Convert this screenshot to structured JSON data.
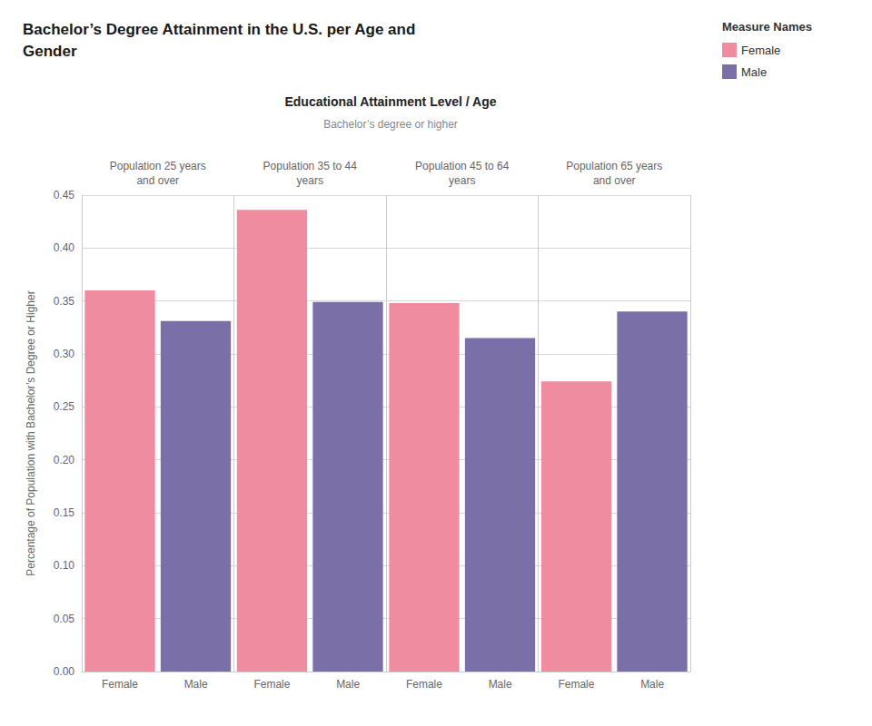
{
  "chart_data": {
    "type": "bar",
    "title": "Bachelor’s Degree Attainment in the U.S. per Age and\nGender",
    "chart_title": "Educational Attainment Level / Age",
    "chart_subtitle": "Bachelor’s degree or higher",
    "ylabel": "Percentage of Population with Bachelor’s Degree or Higher",
    "legend_title": "Measure Names",
    "legend": "upper right",
    "categories": [
      "Population 25 years\nand over",
      "Population 35 to 44\nyears",
      "Population 45 to 64\nyears",
      "Population 65 years\nand over"
    ],
    "series": [
      {
        "name": "Female",
        "color": "#F08CA0",
        "values": [
          0.36,
          0.436,
          0.348,
          0.274
        ]
      },
      {
        "name": "Male",
        "color": "#7B6FA8",
        "values": [
          0.331,
          0.349,
          0.315,
          0.34
        ]
      }
    ],
    "ylim": [
      0,
      0.45
    ],
    "yticks": [
      {
        "value": 0.0,
        "label": "0.00"
      },
      {
        "value": 0.05,
        "label": "0.05"
      },
      {
        "value": 0.1,
        "label": "0.10"
      },
      {
        "value": 0.15,
        "label": "0.15"
      },
      {
        "value": 0.2,
        "label": "0.20"
      },
      {
        "value": 0.25,
        "label": "0.25"
      },
      {
        "value": 0.3,
        "label": "0.30"
      },
      {
        "value": 0.35,
        "label": "0.35"
      },
      {
        "value": 0.4,
        "label": "0.40"
      },
      {
        "value": 0.45,
        "label": "0.45"
      }
    ],
    "grid": true
  }
}
